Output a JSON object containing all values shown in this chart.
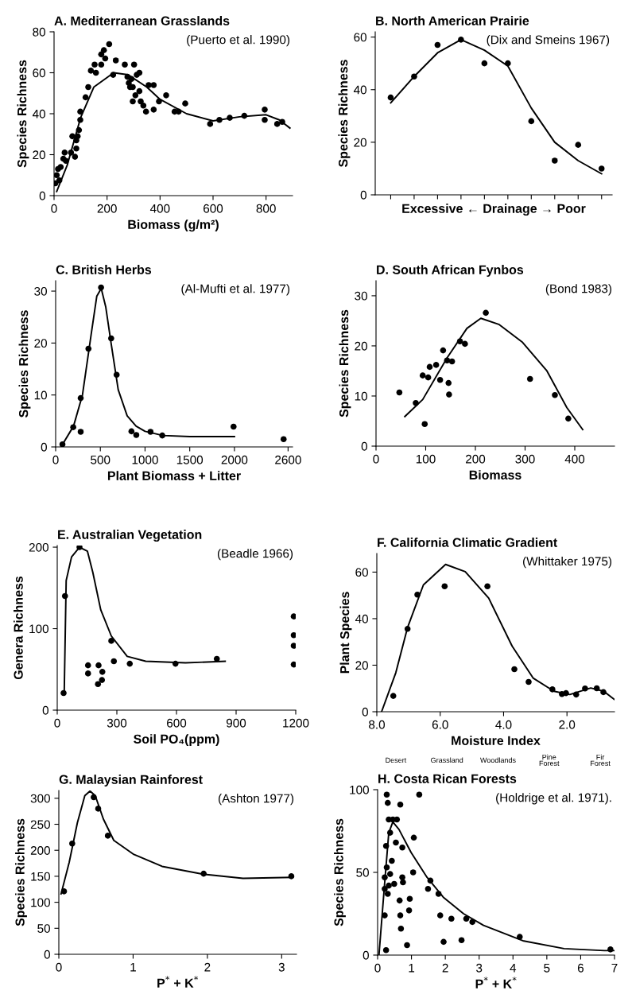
{
  "chart_data": [
    {
      "type": "scatter",
      "title": "A. Mediterranean Grasslands",
      "xlabel": "Biomass (g/m²)",
      "ylabel": "Species Richness",
      "annotations": [
        "(Puerto et al. 1990)"
      ],
      "xlim": [
        0,
        900
      ],
      "ylim": [
        0,
        80
      ],
      "xticks": [
        0,
        200,
        400,
        600,
        800
      ],
      "yticks": [
        0,
        20,
        40,
        60,
        80
      ],
      "series": [
        {
          "marker": "circle",
          "color": "#000000",
          "x": [
            5,
            10,
            15,
            20,
            25,
            35,
            40,
            45,
            64,
            69,
            79,
            84,
            84,
            89,
            94,
            99,
            99,
            119,
            129,
            139,
            153,
            158,
            178,
            178,
            188,
            193,
            208,
            223,
            233,
            267,
            277,
            282,
            287,
            292,
            302,
            297,
            297,
            307,
            312,
            322,
            322,
            327,
            337,
            347,
            357,
            376,
            376,
            396,
            423,
            455,
            470,
            495,
            589,
            624,
            663,
            718,
            795,
            795,
            842,
            861
          ],
          "values": [
            6,
            10,
            13,
            7.5,
            14,
            18,
            21,
            17,
            21,
            29,
            19,
            23,
            27,
            29,
            32,
            37,
            41,
            48,
            53,
            61,
            64,
            60,
            64,
            69,
            71,
            67,
            74,
            59,
            66,
            64,
            58,
            55,
            53,
            57,
            64,
            53,
            46,
            49,
            59,
            60,
            51,
            46,
            44,
            41,
            54,
            54,
            42,
            46,
            49,
            41,
            41,
            45,
            35,
            37,
            38,
            39,
            42,
            37,
            35,
            36
          ]
        },
        {
          "type": "line",
          "color": "#000000",
          "x": [
            10,
            50,
            100,
            150,
            225,
            280,
            350,
            400,
            500,
            600,
            700,
            800,
            850,
            890
          ],
          "values": [
            2,
            15,
            38,
            53,
            60,
            59,
            53,
            47,
            40,
            36.5,
            38.5,
            39.5,
            37,
            33
          ]
        }
      ]
    },
    {
      "type": "scatter",
      "title": "B. North American Prairie",
      "xlabel": "Excessive ← Drainage → Poor",
      "ylabel": "Species Richness",
      "annotations": [
        "(Dix and Smeins 1967)"
      ],
      "categories": [
        null,
        null,
        null,
        null,
        null,
        null,
        null,
        null,
        null,
        null
      ],
      "ylim": [
        0,
        62
      ],
      "yticks": [
        0,
        20,
        40,
        60
      ],
      "tick_labels": "y",
      "series": [
        {
          "marker": "circle",
          "color": "#000000",
          "values": [
            37,
            45,
            57,
            59,
            50,
            50,
            28,
            13,
            19,
            10
          ]
        },
        {
          "type": "line",
          "color": "#000000",
          "values": [
            35,
            45,
            54,
            59,
            55,
            49,
            33,
            20,
            13,
            8
          ]
        }
      ]
    },
    {
      "type": "scatter",
      "title": "C. British Herbs",
      "xlabel": "Plant Biomass + Litter",
      "ylabel": "Species Richness",
      "annotations": [
        "(Al-Mufti et al. 1977)"
      ],
      "xlim": [
        0,
        2650
      ],
      "ylim": [
        0,
        32
      ],
      "xticks": [
        0,
        500,
        1000,
        1500,
        2000,
        2600
      ],
      "yticks": [
        0,
        10,
        20,
        30
      ],
      "series": [
        {
          "marker": "circle",
          "color": "#000000",
          "x": [
            76,
            197,
            280,
            280,
            367,
            508,
            621,
            682,
            848,
            902,
            1061,
            1193,
            1990,
            2550
          ],
          "values": [
            0.5,
            3.8,
            2.9,
            9.4,
            18.9,
            30.7,
            20.9,
            13.9,
            3,
            2.3,
            2.9,
            2.2,
            3.9,
            1.5
          ]
        },
        {
          "type": "line",
          "color": "#000000",
          "x": [
            60,
            200,
            300,
            400,
            460,
            510,
            560,
            620,
            700,
            800,
            900,
            1000,
            1200,
            1500,
            2000
          ],
          "values": [
            0,
            4,
            10,
            22,
            29,
            30.5,
            27,
            20,
            11,
            6,
            4,
            3,
            2.2,
            2,
            2
          ]
        }
      ]
    },
    {
      "type": "scatter",
      "title": "D. South African Fynbos",
      "xlabel": "Biomass",
      "ylabel": "Species Richness",
      "annotations": [
        "(Bond 1983)"
      ],
      "xlim": [
        0,
        480
      ],
      "ylim": [
        0,
        33
      ],
      "xticks": [
        0,
        100,
        200,
        300,
        400
      ],
      "yticks": [
        0,
        10,
        20,
        30
      ],
      "series": [
        {
          "marker": "circle",
          "color": "#000000",
          "x": [
            47,
            80,
            98,
            94,
            105,
            108,
            121,
            129,
            135,
            143,
            153,
            146,
            147,
            169,
            179,
            221,
            310,
            360,
            387
          ],
          "values": [
            10.7,
            8.6,
            4.4,
            14.1,
            13.7,
            15.8,
            16.2,
            13.2,
            19.1,
            17.1,
            16.9,
            12.6,
            10.3,
            20.9,
            20.4,
            26.6,
            13.4,
            10.2,
            5.5
          ]
        },
        {
          "type": "line",
          "color": "#000000",
          "x": [
            58,
            94,
            143,
            183,
            211,
            247,
            295,
            344,
            384,
            416
          ],
          "values": [
            5.9,
            9.3,
            17.6,
            23.5,
            25.5,
            24.3,
            20.7,
            15,
            7.7,
            3.3
          ]
        }
      ]
    },
    {
      "type": "scatter",
      "title": "E. Australian Vegetation",
      "xlabel": "Soil PO₄(ppm)",
      "ylabel": "Genera Richness",
      "annotations": [
        "(Beadle 1966)"
      ],
      "xlim": [
        0,
        1200
      ],
      "ylim": [
        0,
        202
      ],
      "xticks": [
        0,
        300,
        600,
        900,
        1200
      ],
      "yticks": [
        0,
        100,
        200
      ],
      "series": [
        {
          "marker": "circle",
          "color": "#000000",
          "x": [
            32,
            39,
            112,
            272,
            285,
            365,
            155,
            155,
            208,
            227,
            205,
            225,
            595,
            803,
            1190,
            1190,
            1190,
            1190
          ],
          "values": [
            21,
            140,
            200,
            85,
            60,
            57,
            55,
            45,
            55,
            47,
            32,
            37,
            57,
            63,
            115,
            92,
            79,
            56
          ]
        },
        {
          "type": "line",
          "color": "#000000",
          "x": [
            35,
            45,
            72,
            112,
            152,
            179,
            219,
            272,
            352,
            445,
            645,
            845
          ],
          "values": [
            19,
            159,
            188,
            200,
            195,
            169,
            123,
            91,
            66,
            60,
            58,
            60
          ]
        }
      ]
    },
    {
      "type": "scatter",
      "title": "F. California Climatic Gradient",
      "xlabel": "Moisture Index",
      "ylabel": "Plant Species",
      "annotations": [
        "(Whittaker 1975)",
        "Desert",
        "Grassland",
        "Woodlands",
        "Pine\nForest",
        "Fir\nForest"
      ],
      "xlim": [
        8.0,
        0.5
      ],
      "ylim": [
        0,
        68
      ],
      "xticks": [
        {
          "value": 8,
          "label": "8.0"
        },
        {
          "value": 6,
          "label": "6.0"
        },
        {
          "value": 4,
          "label": "4.0"
        },
        {
          "value": 2,
          "label": "2.0"
        }
      ],
      "yticks": [
        0,
        20,
        40,
        60
      ],
      "series": [
        {
          "marker": "circle",
          "color": "#000000",
          "x": [
            7.48,
            7.03,
            6.72,
            5.86,
            4.51,
            3.66,
            3.21,
            2.46,
            2.16,
            2.03,
            1.71,
            1.43,
            1.06,
            0.85
          ],
          "values": [
            6.8,
            35.6,
            50.3,
            53.9,
            53.9,
            18.3,
            12.8,
            9.6,
            7.6,
            8,
            7.4,
            10,
            10.1,
            8.4
          ]
        },
        {
          "type": "line",
          "color": "#000000",
          "x": [
            7.85,
            7.4,
            7.03,
            6.53,
            5.83,
            5.21,
            4.47,
            3.73,
            3.07,
            2.41,
            1.91,
            1.25,
            0.84,
            0.51
          ],
          "values": [
            0,
            16.8,
            36.2,
            54.5,
            63.3,
            60.2,
            48.8,
            28.2,
            14.5,
            8.8,
            7.4,
            10.2,
            8.8,
            5.3
          ]
        }
      ]
    },
    {
      "type": "scatter",
      "title": "G. Malaysian Rainforest",
      "xlabel": "P$^{*}$ + K$^{*}$",
      "ylabel": "Species Richness",
      "annotations": [
        "(Ashton 1977)"
      ],
      "xlim": [
        0,
        3.2
      ],
      "ylim": [
        0,
        315
      ],
      "xticks": [
        0,
        1,
        2,
        3
      ],
      "yticks": [
        0,
        50,
        100,
        150,
        200,
        250,
        300
      ],
      "series": [
        {
          "marker": "circle",
          "color": "#000000",
          "x": [
            0.07,
            0.18,
            0.47,
            0.53,
            0.66,
            1.95,
            3.13
          ],
          "values": [
            121,
            213,
            302,
            280,
            228,
            155,
            150
          ]
        },
        {
          "type": "line",
          "color": "#000000",
          "x": [
            0.03,
            0.14,
            0.25,
            0.35,
            0.42,
            0.49,
            0.6,
            0.74,
            1.01,
            1.39,
            1.94,
            2.48,
            3.14
          ],
          "values": [
            116,
            177,
            253,
            305,
            314,
            305,
            260,
            219,
            192,
            169,
            154,
            146,
            148
          ]
        }
      ]
    },
    {
      "type": "scatter",
      "title": "H. Costa Rican Forests",
      "xlabel": "P$^{*}$ + K$^{*}$",
      "ylabel": "Species Richness",
      "annotations": [
        "(Holdrige et al. 1971)."
      ],
      "xlim": [
        0,
        7
      ],
      "ylim": [
        0,
        100
      ],
      "xticks": [
        0,
        1,
        2,
        3,
        4,
        5,
        6,
        7
      ],
      "yticks": [
        0,
        50,
        100
      ],
      "series": [
        {
          "marker": "circle",
          "color": "#000000",
          "x": [
            0.27,
            0.3,
            0.33,
            0.45,
            0.67,
            0.57,
            1.23,
            0.25,
            0.37,
            0.27,
            0.42,
            0.21,
            0.37,
            0.49,
            0.33,
            0.21,
            0.3,
            0.21,
            0.54,
            0.73,
            1.07,
            0.73,
            0.75,
            1.05,
            0.65,
            0.95,
            0.67,
            0.93,
            0.69,
            0.25,
            0.87,
            1.56,
            1.49,
            1.8,
            1.85,
            2.18,
            1.95,
            2.48,
            2.62,
            2.8,
            4.2,
            6.88
          ],
          "values": [
            97,
            92,
            82,
            82,
            91,
            82,
            97,
            66,
            74,
            53,
            57,
            47,
            49,
            43,
            42,
            40,
            37,
            24,
            68,
            65,
            71,
            47,
            44,
            50,
            33,
            34,
            24,
            27,
            16,
            3,
            6,
            45,
            40,
            37,
            24,
            22,
            8,
            9,
            22,
            20,
            11,
            3.4
          ]
        },
        {
          "type": "line",
          "color": "#000000",
          "x": [
            0.04,
            0.21,
            0.33,
            0.45,
            0.63,
            0.99,
            1.46,
            1.94,
            2.54,
            3.13,
            4.32,
            5.51,
            6.7,
            7
          ],
          "values": [
            0,
            44,
            74,
            80.5,
            76,
            62,
            47,
            35,
            25,
            18,
            8.5,
            3.9,
            2.7,
            2.7
          ]
        }
      ]
    }
  ]
}
